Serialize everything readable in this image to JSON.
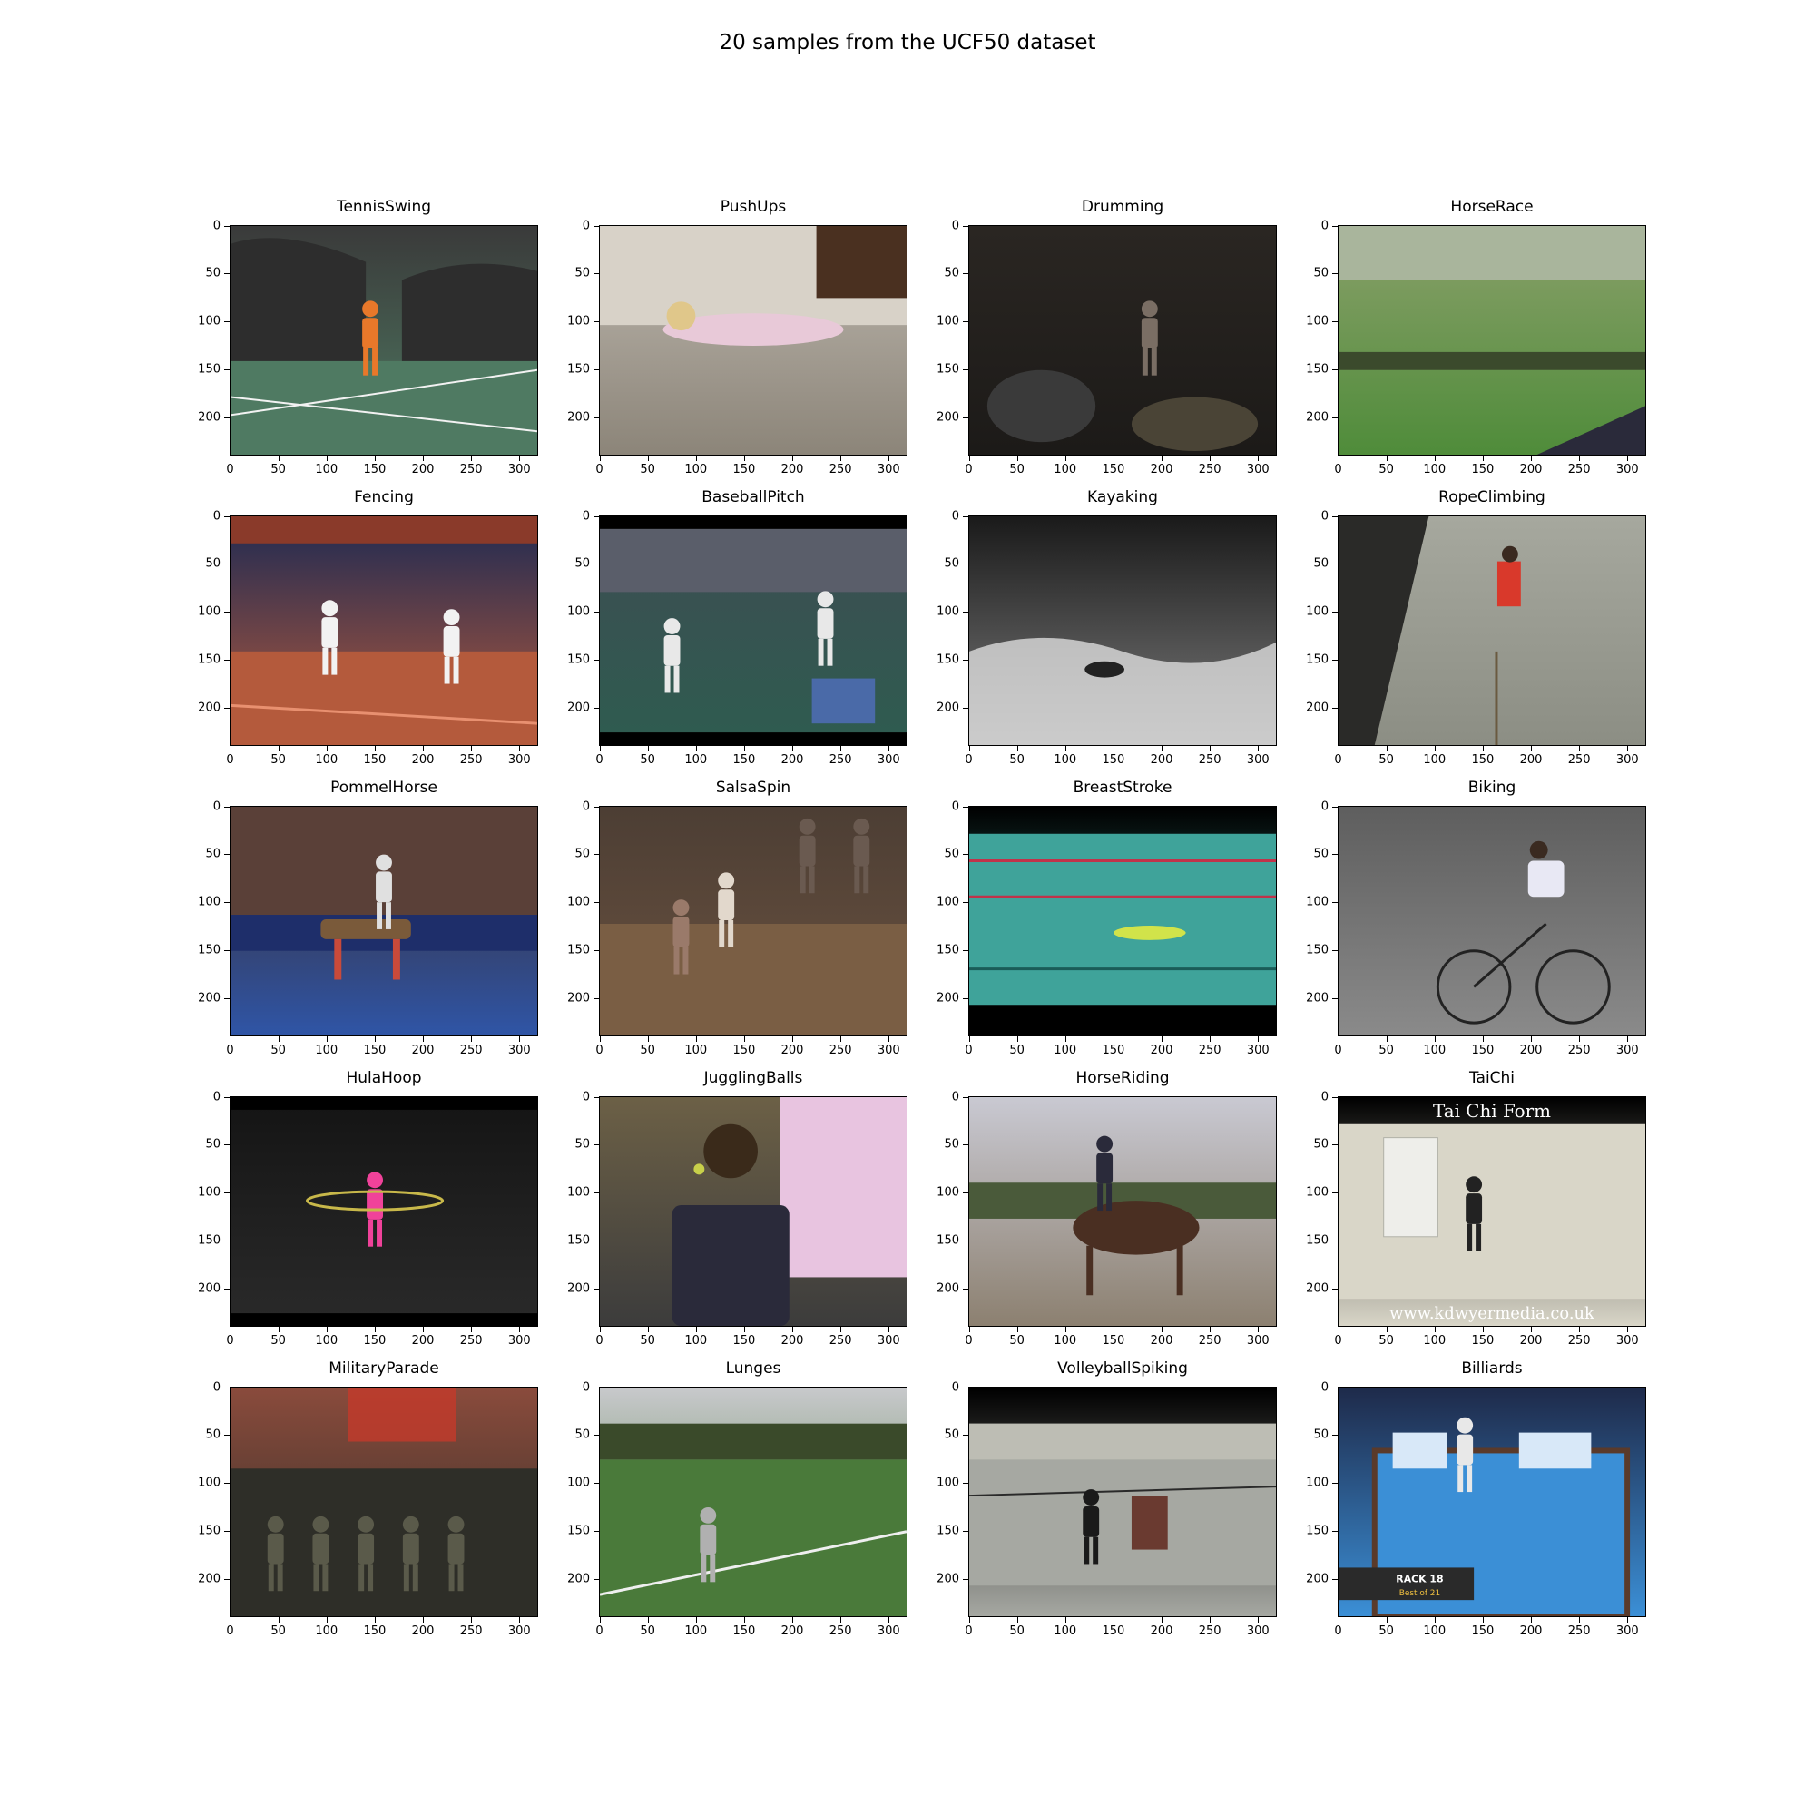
{
  "figure": {
    "title": "20 samples from the UCF50 dataset"
  },
  "axes": {
    "x_ticks": [
      "0",
      "50",
      "100",
      "150",
      "200",
      "250",
      "300"
    ],
    "y_ticks": [
      "0",
      "50",
      "100",
      "150",
      "200"
    ]
  },
  "samples": [
    {
      "label": "TennisSwing",
      "icon": "tennis-court-scene",
      "colors": {
        "top": "#3a3a3a",
        "bottom": "#4f7a62",
        "accent": "#e8782a"
      }
    },
    {
      "label": "PushUps",
      "icon": "indoor-floor-scene",
      "colors": {
        "top": "#bdb7ae",
        "bottom": "#8c8579",
        "accent": "#e8c9d8"
      }
    },
    {
      "label": "Drumming",
      "icon": "dark-room-scene",
      "colors": {
        "top": "#2a2622",
        "bottom": "#1c1a18",
        "accent": "#6e6a62"
      }
    },
    {
      "label": "HorseRace",
      "icon": "race-track-scene",
      "colors": {
        "top": "#8aa06a",
        "bottom": "#4f8c3a",
        "accent": "#2c2c2c"
      }
    },
    {
      "label": "Fencing",
      "icon": "fencing-arena-scene",
      "colors": {
        "top": "#1f2a52",
        "bottom": "#b45a3c",
        "accent": "#f2f2f2"
      }
    },
    {
      "label": "BaseballPitch",
      "icon": "baseball-field-scene",
      "colors": {
        "top": "#3e4c52",
        "bottom": "#2e5c50",
        "accent": "#e8e8e8"
      }
    },
    {
      "label": "Kayaking",
      "icon": "river-rapids-scene",
      "colors": {
        "top": "#1a1a1a",
        "bottom": "#7c7c7c",
        "accent": "#e6e6e6"
      }
    },
    {
      "label": "RopeClimbing",
      "icon": "rope-wall-scene",
      "colors": {
        "top": "#a6a89e",
        "bottom": "#8c8e84",
        "accent": "#d9392b"
      }
    },
    {
      "label": "PommelHorse",
      "icon": "gym-arena-scene",
      "colors": {
        "top": "#3b2a2a",
        "bottom": "#2f55a6",
        "accent": "#c94a3a"
      }
    },
    {
      "label": "SalsaSpin",
      "icon": "dance-floor-scene",
      "colors": {
        "top": "#4c3e34",
        "bottom": "#6b5240",
        "accent": "#e2d8cc"
      }
    },
    {
      "label": "BreastStroke",
      "icon": "swimming-pool-scene",
      "colors": {
        "top": "#000000",
        "bottom": "#3fa39a",
        "accent": "#d1e34a"
      }
    },
    {
      "label": "Biking",
      "icon": "road-cyclist-scene",
      "colors": {
        "top": "#5e5e5e",
        "bottom": "#8a8a8a",
        "accent": "#e8e8f4"
      }
    },
    {
      "label": "HulaHoop",
      "icon": "studio-scene",
      "colors": {
        "top": "#141414",
        "bottom": "#2a2a2a",
        "accent": "#f0429a"
      }
    },
    {
      "label": "JugglingBalls",
      "icon": "window-room-scene",
      "colors": {
        "top": "#6c6046",
        "bottom": "#3c3c3c",
        "accent": "#e8c4e0"
      }
    },
    {
      "label": "HorseRiding",
      "icon": "field-horse-scene",
      "colors": {
        "top": "#c9c9d2",
        "bottom": "#8c8070",
        "accent": "#4a2f22"
      }
    },
    {
      "label": "TaiChi",
      "icon": "bright-room-scene",
      "colors": {
        "top": "#000000",
        "bottom": "#d9d6c8",
        "accent": "#222222"
      }
    },
    {
      "label": "MilitaryParade",
      "icon": "parade-ground-scene",
      "colors": {
        "top": "#8a4b3c",
        "bottom": "#2e2e28",
        "accent": "#c43a2a"
      }
    },
    {
      "label": "Lunges",
      "icon": "football-field-scene",
      "colors": {
        "top": "#c8c9cc",
        "bottom": "#4a7a3a",
        "accent": "#efefef"
      }
    },
    {
      "label": "VolleyballSpiking",
      "icon": "gym-court-scene",
      "colors": {
        "top": "#000000",
        "bottom": "#a6a8a2",
        "accent": "#6a3a30"
      }
    },
    {
      "label": "Billiards",
      "icon": "pool-table-scene",
      "colors": {
        "top": "#1e2a4a",
        "bottom": "#3b8fd6",
        "accent": "#e8e8e8"
      }
    }
  ],
  "overlays": {
    "taichi_top": "Tai Chi Form",
    "taichi_bottom": "www.kdwyermedia.co.uk",
    "billiards_rack": "RACK 18",
    "billiards_best": "Best of 21"
  }
}
